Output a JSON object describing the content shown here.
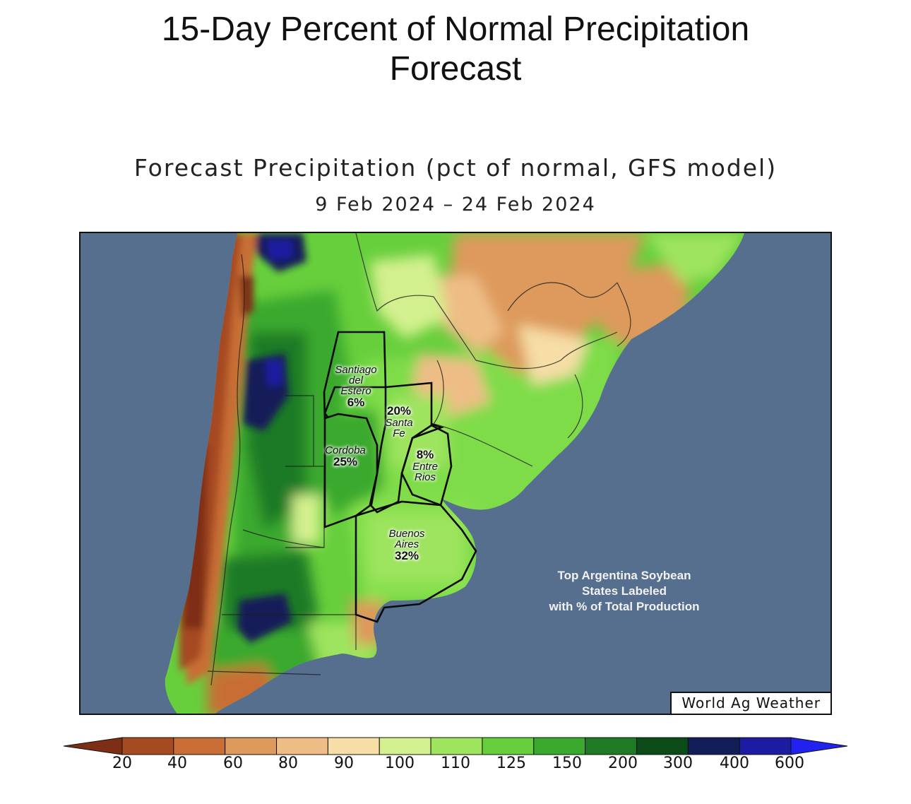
{
  "page": {
    "title_line1": "15-Day Percent of Normal Precipitation",
    "title_line2": "Forecast"
  },
  "map": {
    "title": "Forecast Precipitation (pct of normal, GFS model)",
    "date_range": "9 Feb 2024 – 24 Feb 2024",
    "credit": "World Ag Weather",
    "note_lines": [
      "Top Argentina Soybean",
      "States Labeled",
      "with % of Total Production"
    ],
    "ocean_color": "#566f8e",
    "regions": [
      {
        "name_lines": [
          "Santiago",
          "del",
          "Estero"
        ],
        "share": "6%"
      },
      {
        "name_lines": [
          "Santa",
          "Fe"
        ],
        "share": "20%"
      },
      {
        "name_lines": [
          "Cordoba"
        ],
        "share": "25%"
      },
      {
        "name_lines": [
          "Entre",
          "Rios"
        ],
        "share": "8%"
      },
      {
        "name_lines": [
          "Buenos",
          "Aires"
        ],
        "share": "32%"
      }
    ]
  },
  "legend": {
    "labels": [
      "20",
      "40",
      "60",
      "80",
      "90",
      "100",
      "110",
      "125",
      "150",
      "200",
      "300",
      "400",
      "600"
    ],
    "colors": [
      "#7e2e14",
      "#a64a22",
      "#c86e36",
      "#dd9a5c",
      "#eebd86",
      "#f6dea6",
      "#d3f08e",
      "#9ee45e",
      "#67cf3c",
      "#3aa92e",
      "#1f7a26",
      "#0c4a18",
      "#131d58",
      "#1c1ca2",
      "#2222ee"
    ]
  }
}
